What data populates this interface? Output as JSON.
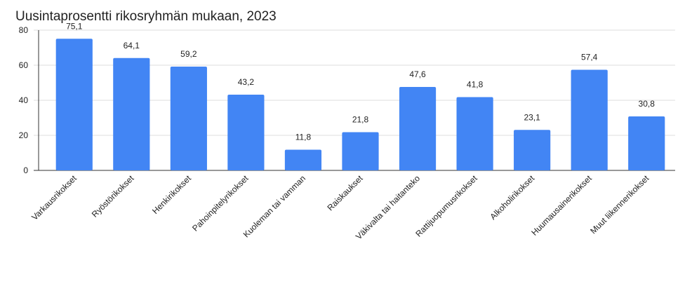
{
  "chart_data": {
    "type": "bar",
    "title": "Uusintaprosentti rikosryhmän mukaan, 2023",
    "categories": [
      "Varkausrikokset",
      "Ryöstörikokset",
      "Henkirikokset",
      "Pahoinpitelyrikokset",
      "Kuoleman tai vamman",
      "Raiskaukset",
      "Väkivalta tai haitanteko",
      "Rattijuopumusrikokset",
      "Alkoholirikokset",
      "Huumausainerikokset",
      "Muut liikennerikokset"
    ],
    "values": [
      75.1,
      64.1,
      59.2,
      43.2,
      11.8,
      21.8,
      47.6,
      41.8,
      23.1,
      57.4,
      30.8
    ],
    "value_labels": [
      "75,1",
      "64,1",
      "59,2",
      "43,2",
      "11,8",
      "21,8",
      "47,6",
      "41,8",
      "23,1",
      "57,4",
      "30,8"
    ],
    "color": "#4285f4",
    "ylim": [
      0,
      80
    ],
    "yticks": [
      0,
      20,
      40,
      60,
      80
    ],
    "grid": true
  }
}
